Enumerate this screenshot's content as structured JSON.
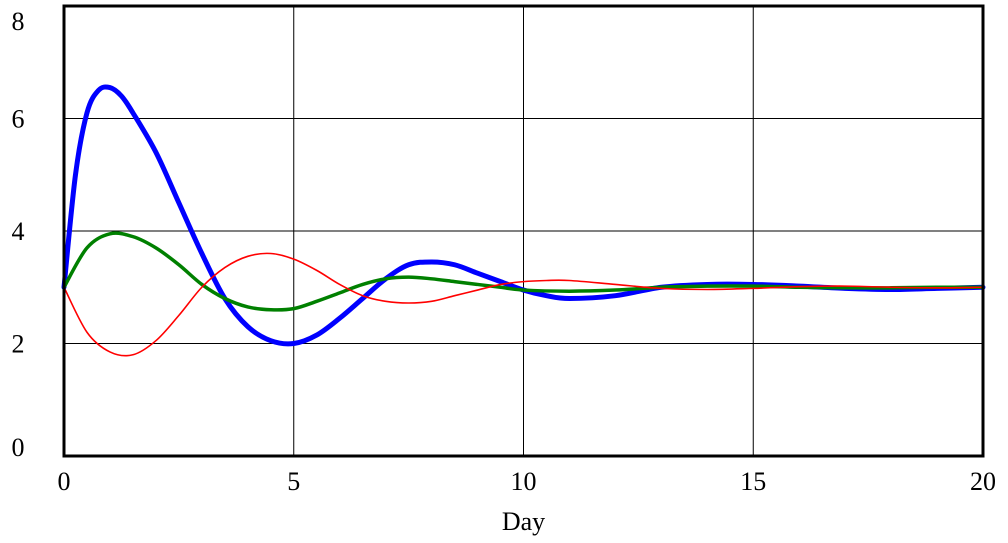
{
  "chart_data": {
    "type": "line",
    "title": "",
    "xlabel": "Day",
    "ylabel": "",
    "xlim": [
      0,
      20
    ],
    "ylim": [
      0,
      8
    ],
    "xticks": [
      0,
      5,
      10,
      15,
      20
    ],
    "yticks": [
      0,
      2,
      4,
      6,
      8
    ],
    "grid": true,
    "legend": "none",
    "series": [
      {
        "color": "#0000ff",
        "x": [
          0,
          0.25,
          0.5,
          0.75,
          1,
          1.25,
          1.5,
          2,
          2.5,
          3,
          3.5,
          4,
          4.5,
          5,
          5.5,
          6,
          6.5,
          7,
          7.5,
          8,
          8.5,
          9,
          9.5,
          10,
          10.5,
          11,
          12,
          13,
          14,
          15,
          16,
          17,
          18,
          19,
          20
        ],
        "y": [
          3,
          5.0,
          6.1,
          6.5,
          6.55,
          6.4,
          6.1,
          5.4,
          4.5,
          3.6,
          2.8,
          2.3,
          2.05,
          2.0,
          2.15,
          2.45,
          2.8,
          3.15,
          3.4,
          3.45,
          3.4,
          3.25,
          3.1,
          2.95,
          2.85,
          2.8,
          2.85,
          3.0,
          3.05,
          3.05,
          3.02,
          2.98,
          2.96,
          2.98,
          3.0
        ]
      },
      {
        "color": "#008000",
        "x": [
          0,
          0.5,
          1,
          1.5,
          2,
          2.5,
          3,
          3.5,
          4,
          4.5,
          5,
          5.5,
          6,
          6.5,
          7,
          7.5,
          8,
          8.5,
          9,
          9.5,
          10,
          11,
          12,
          13,
          14,
          15,
          16,
          17,
          18,
          19,
          20
        ],
        "y": [
          3,
          3.7,
          3.95,
          3.9,
          3.7,
          3.4,
          3.05,
          2.8,
          2.65,
          2.6,
          2.62,
          2.75,
          2.9,
          3.05,
          3.15,
          3.18,
          3.15,
          3.1,
          3.05,
          3.0,
          2.95,
          2.93,
          2.95,
          3.0,
          3.02,
          3.02,
          3.0,
          2.99,
          2.99,
          3.0,
          3.0
        ]
      },
      {
        "color": "#ff0000",
        "x": [
          0,
          0.5,
          1,
          1.5,
          2,
          2.5,
          3,
          3.5,
          4,
          4.5,
          5,
          5.5,
          6,
          6.5,
          7,
          7.5,
          8,
          8.5,
          9,
          9.5,
          10,
          10.5,
          11,
          12,
          13,
          14,
          15,
          16,
          17,
          18,
          19,
          20
        ],
        "y": [
          3,
          2.2,
          1.85,
          1.8,
          2.05,
          2.5,
          3.0,
          3.35,
          3.55,
          3.6,
          3.5,
          3.3,
          3.05,
          2.85,
          2.75,
          2.72,
          2.75,
          2.85,
          2.95,
          3.05,
          3.1,
          3.12,
          3.12,
          3.05,
          2.98,
          2.96,
          2.98,
          3.01,
          3.02,
          3.0,
          2.99,
          3.0
        ]
      }
    ]
  }
}
